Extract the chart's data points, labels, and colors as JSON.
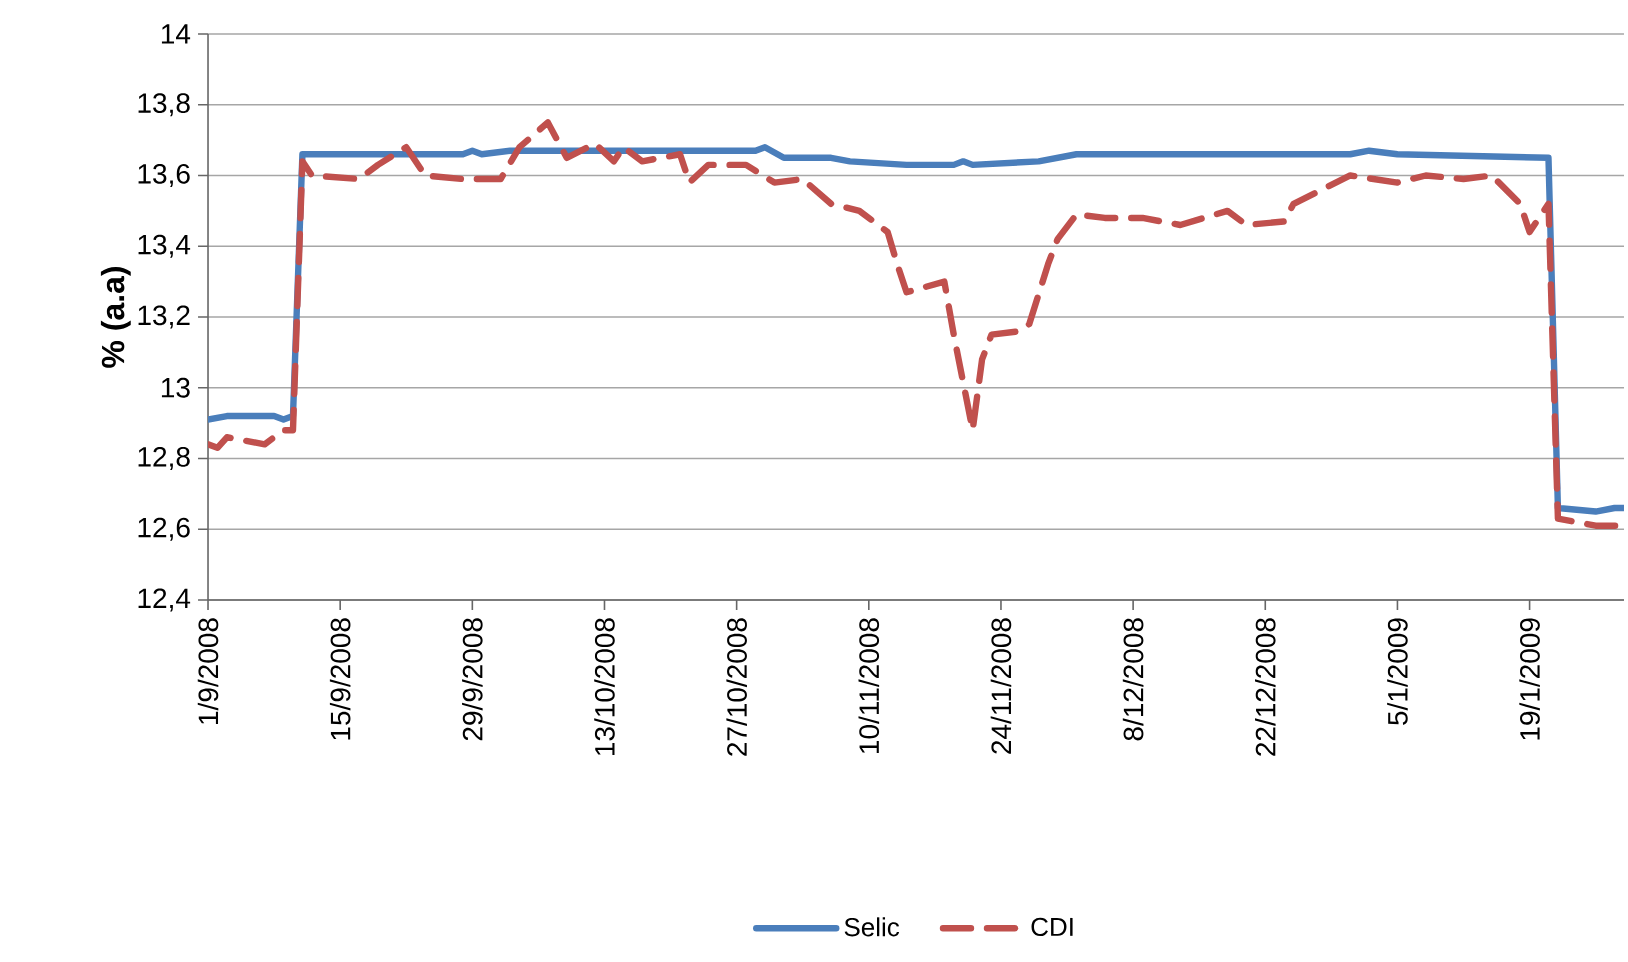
{
  "chart_data": {
    "type": "line",
    "ylabel": "% (a.a)",
    "xlim": [
      "2008-09-01",
      "2009-01-29"
    ],
    "xticks": [
      {
        "value": "2008-09-01",
        "label": "1/9/2008"
      },
      {
        "value": "2008-09-15",
        "label": "15/9/2008"
      },
      {
        "value": "2008-09-29",
        "label": "29/9/2008"
      },
      {
        "value": "2008-10-13",
        "label": "13/10/2008"
      },
      {
        "value": "2008-10-27",
        "label": "27/10/2008"
      },
      {
        "value": "2008-11-10",
        "label": "10/11/2008"
      },
      {
        "value": "2008-11-24",
        "label": "24/11/2008"
      },
      {
        "value": "2008-12-08",
        "label": "8/12/2008"
      },
      {
        "value": "2008-12-22",
        "label": "22/12/2008"
      },
      {
        "value": "2009-01-05",
        "label": "5/1/2009"
      },
      {
        "value": "2009-01-19",
        "label": "19/1/2009"
      }
    ],
    "ylim": [
      12.4,
      14
    ],
    "yticks": [
      {
        "value": 12.4,
        "label": "12,4"
      },
      {
        "value": 12.6,
        "label": "12,6"
      },
      {
        "value": 12.8,
        "label": "12,8"
      },
      13,
      {
        "value": 13.2,
        "label": "13,2"
      },
      {
        "value": 13.4,
        "label": "13,4"
      },
      {
        "value": 13.6,
        "label": "13,6"
      },
      {
        "value": 13.8,
        "label": "13,8"
      },
      14
    ],
    "grid": "y",
    "legend": "bottom",
    "series": [
      {
        "name": "Selic",
        "color": "#4a7ebb",
        "line_style": "solid",
        "x": [
          "2008-09-01",
          "2008-09-03",
          "2008-09-08",
          "2008-09-09",
          "2008-09-10",
          "2008-09-11",
          "2008-09-28",
          "2008-09-29",
          "2008-09-30",
          "2008-10-03",
          "2008-10-29",
          "2008-10-30",
          "2008-11-01",
          "2008-11-06",
          "2008-11-08",
          "2008-11-14",
          "2008-11-19",
          "2008-11-20",
          "2008-11-21",
          "2008-11-28",
          "2008-12-02",
          "2008-12-31",
          "2009-01-02",
          "2009-01-05",
          "2009-01-21",
          "2009-01-22",
          "2009-01-26",
          "2009-01-28",
          "2009-01-29"
        ],
        "values": [
          12.91,
          12.92,
          12.92,
          12.91,
          12.92,
          13.66,
          13.66,
          13.67,
          13.66,
          13.67,
          13.67,
          13.68,
          13.65,
          13.65,
          13.64,
          13.63,
          13.63,
          13.64,
          13.63,
          13.64,
          13.66,
          13.66,
          13.67,
          13.66,
          13.65,
          12.66,
          12.65,
          12.66,
          12.66
        ]
      },
      {
        "name": "CDI",
        "color": "#c0504d",
        "line_style": "dashed",
        "x": [
          "2008-09-01",
          "2008-09-02",
          "2008-09-03",
          "2008-09-07",
          "2008-09-09",
          "2008-09-10",
          "2008-09-11",
          "2008-09-12",
          "2008-09-17",
          "2008-09-19",
          "2008-09-22",
          "2008-09-24",
          "2008-09-28",
          "2008-10-02",
          "2008-10-04",
          "2008-10-07",
          "2008-10-09",
          "2008-10-12",
          "2008-10-14",
          "2008-10-15",
          "2008-10-17",
          "2008-10-21",
          "2008-10-22",
          "2008-10-24",
          "2008-10-28",
          "2008-10-31",
          "2008-11-03",
          "2008-11-06",
          "2008-11-09",
          "2008-11-12",
          "2008-11-13",
          "2008-11-14",
          "2008-11-18",
          "2008-11-19",
          "2008-11-21",
          "2008-11-22",
          "2008-11-23",
          "2008-11-26",
          "2008-11-27",
          "2008-11-29",
          "2008-11-30",
          "2008-12-02",
          "2008-12-05",
          "2008-12-09",
          "2008-12-13",
          "2008-12-18",
          "2008-12-20",
          "2008-12-24",
          "2008-12-25",
          "2008-12-28",
          "2008-12-31",
          "2009-01-05",
          "2009-01-08",
          "2009-01-12",
          "2009-01-15",
          "2009-01-18",
          "2009-01-19",
          "2009-01-21",
          "2009-01-22",
          "2009-01-26",
          "2009-01-29"
        ],
        "values": [
          12.84,
          12.83,
          12.86,
          12.84,
          12.88,
          12.88,
          13.64,
          13.6,
          13.59,
          13.63,
          13.68,
          13.6,
          13.59,
          13.59,
          13.68,
          13.75,
          13.65,
          13.69,
          13.64,
          13.68,
          13.64,
          13.66,
          13.58,
          13.63,
          13.63,
          13.58,
          13.59,
          13.52,
          13.5,
          13.44,
          13.35,
          13.27,
          13.3,
          13.15,
          12.88,
          13.08,
          13.15,
          13.16,
          13.18,
          13.35,
          13.42,
          13.49,
          13.48,
          13.48,
          13.46,
          13.5,
          13.46,
          13.47,
          13.52,
          13.56,
          13.6,
          13.58,
          13.6,
          13.59,
          13.6,
          13.52,
          13.44,
          13.52,
          12.63,
          12.61,
          12.61
        ]
      }
    ]
  }
}
